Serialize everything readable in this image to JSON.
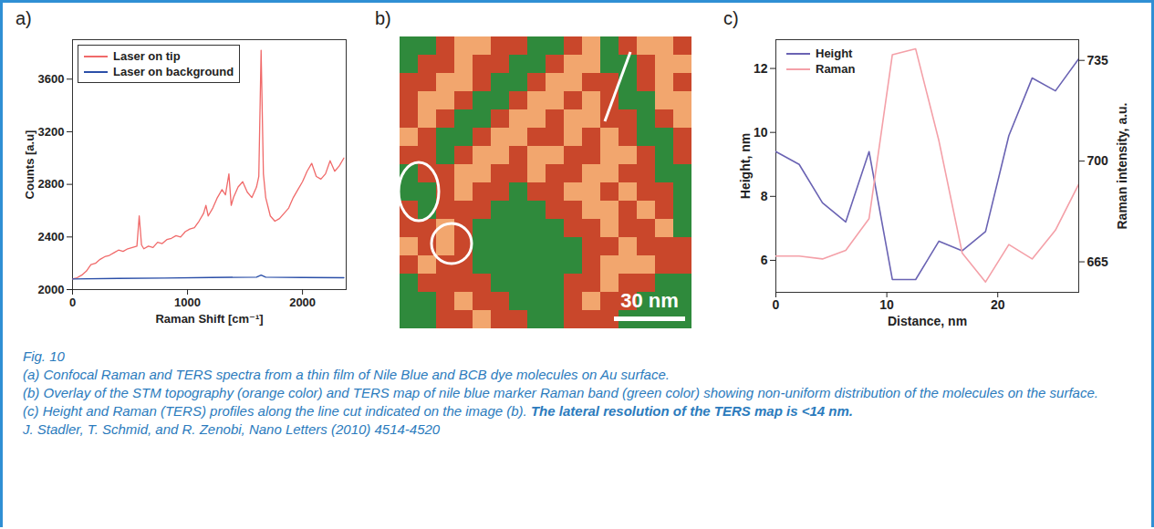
{
  "chart_data": [
    {
      "panel": "a)",
      "type": "line",
      "xlabel": "Raman Shift [cm⁻¹]",
      "ylabel": "Counts [a.u]",
      "xlim": [
        0,
        2380
      ],
      "ylim": [
        2000,
        3900
      ],
      "xticks": [
        0,
        1000,
        2000
      ],
      "yticks": [
        2000,
        2400,
        2800,
        3200,
        3600
      ],
      "legend": "top-left",
      "series": [
        {
          "name": "Laser on tip",
          "color": "#f06a6a",
          "x": [
            0,
            40,
            80,
            120,
            160,
            200,
            240,
            280,
            320,
            360,
            400,
            440,
            480,
            520,
            560,
            580,
            600,
            620,
            660,
            700,
            740,
            780,
            820,
            860,
            900,
            940,
            980,
            1020,
            1060,
            1100,
            1140,
            1160,
            1180,
            1220,
            1260,
            1300,
            1330,
            1360,
            1380,
            1400,
            1440,
            1480,
            1520,
            1560,
            1600,
            1620,
            1640,
            1660,
            1680,
            1720,
            1760,
            1800,
            1840,
            1880,
            1920,
            1960,
            2000,
            2040,
            2080,
            2120,
            2160,
            2200,
            2240,
            2280,
            2320,
            2360
          ],
          "values": [
            2080,
            2090,
            2110,
            2140,
            2190,
            2200,
            2230,
            2250,
            2260,
            2280,
            2300,
            2290,
            2310,
            2320,
            2330,
            2560,
            2340,
            2310,
            2330,
            2320,
            2360,
            2350,
            2380,
            2390,
            2410,
            2400,
            2440,
            2460,
            2470,
            2520,
            2580,
            2640,
            2560,
            2620,
            2700,
            2760,
            2720,
            2880,
            2640,
            2700,
            2780,
            2820,
            2740,
            2700,
            2780,
            2860,
            3820,
            2880,
            2700,
            2560,
            2520,
            2540,
            2580,
            2620,
            2700,
            2760,
            2820,
            2900,
            2960,
            2860,
            2840,
            2880,
            2980,
            2900,
            2940,
            3000
          ]
        },
        {
          "name": "Laser on background",
          "color": "#2b4fa8",
          "x": [
            0,
            400,
            800,
            1200,
            1600,
            1640,
            1680,
            2000,
            2360
          ],
          "values": [
            2080,
            2085,
            2088,
            2092,
            2095,
            2110,
            2095,
            2092,
            2090
          ]
        }
      ]
    },
    {
      "panel": "b)",
      "type": "heatmap",
      "tick_labels": false,
      "scale_bar": "30 nm",
      "colors": [
        "#2f8a3c",
        "#c9472b",
        "#f2a66e"
      ],
      "cells": [
        [
          0,
          0,
          1,
          2,
          2,
          1,
          1,
          0,
          0,
          1,
          2,
          0,
          1,
          2,
          2,
          1
        ],
        [
          0,
          1,
          1,
          2,
          1,
          1,
          0,
          0,
          1,
          2,
          2,
          0,
          0,
          1,
          2,
          2
        ],
        [
          1,
          1,
          2,
          2,
          1,
          0,
          0,
          1,
          2,
          2,
          1,
          1,
          0,
          1,
          2,
          1
        ],
        [
          1,
          2,
          2,
          1,
          0,
          0,
          1,
          2,
          2,
          1,
          2,
          1,
          0,
          0,
          2,
          2
        ],
        [
          1,
          2,
          1,
          0,
          0,
          1,
          2,
          2,
          1,
          2,
          2,
          1,
          1,
          0,
          1,
          2
        ],
        [
          2,
          1,
          0,
          0,
          1,
          2,
          2,
          1,
          1,
          2,
          1,
          2,
          1,
          0,
          0,
          1
        ],
        [
          1,
          1,
          0,
          1,
          2,
          2,
          1,
          2,
          2,
          1,
          1,
          2,
          2,
          1,
          0,
          1
        ],
        [
          0,
          1,
          1,
          2,
          2,
          1,
          1,
          2,
          1,
          1,
          2,
          2,
          1,
          1,
          0,
          0
        ],
        [
          0,
          0,
          1,
          2,
          1,
          1,
          0,
          1,
          1,
          2,
          2,
          1,
          2,
          1,
          1,
          0
        ],
        [
          1,
          0,
          1,
          1,
          1,
          0,
          0,
          0,
          1,
          1,
          2,
          2,
          1,
          2,
          1,
          0
        ],
        [
          1,
          1,
          2,
          1,
          0,
          0,
          0,
          0,
          0,
          1,
          1,
          2,
          1,
          1,
          2,
          0
        ],
        [
          2,
          1,
          2,
          1,
          0,
          0,
          0,
          0,
          0,
          0,
          1,
          1,
          2,
          1,
          1,
          1
        ],
        [
          1,
          2,
          1,
          1,
          0,
          0,
          0,
          0,
          0,
          0,
          1,
          2,
          2,
          2,
          1,
          1
        ],
        [
          0,
          1,
          1,
          1,
          1,
          0,
          0,
          0,
          0,
          1,
          1,
          2,
          1,
          1,
          0,
          0
        ],
        [
          0,
          0,
          1,
          2,
          1,
          1,
          0,
          0,
          0,
          1,
          2,
          1,
          1,
          0,
          0,
          0
        ],
        [
          0,
          0,
          1,
          1,
          2,
          1,
          1,
          0,
          0,
          1,
          1,
          1,
          0,
          0,
          0,
          0
        ]
      ]
    },
    {
      "panel": "c)",
      "type": "line",
      "xlabel": "Distance, nm",
      "ylabel": "Height, nm",
      "y2label": "Raman intensity, a.u.",
      "x": [
        0,
        2.1,
        4.2,
        6.3,
        8.4,
        10.5,
        12.6,
        14.7,
        16.8,
        18.9,
        21,
        23.1,
        25.2,
        27.3
      ],
      "xlim": [
        0,
        27.3
      ],
      "xticks": [
        0,
        10,
        20
      ],
      "ylim": [
        5,
        12.9
      ],
      "yticks": [
        6,
        8,
        10,
        12
      ],
      "y2lim": [
        654.4,
        742.2
      ],
      "y2ticks": [
        665,
        700,
        735
      ],
      "legend": "top-left",
      "series": [
        {
          "name": "Height",
          "color": "#6a63b3",
          "values": [
            9.4,
            9.0,
            7.8,
            7.2,
            9.4,
            5.4,
            5.4,
            6.6,
            6.3,
            6.9,
            9.9,
            11.7,
            11.3,
            12.3
          ]
        },
        {
          "name": "Raman",
          "color": "#f4a0a8",
          "axis": "y2",
          "values": [
            667,
            667,
            666,
            669,
            680,
            737,
            739,
            707,
            668,
            658,
            671,
            666,
            676,
            692
          ]
        }
      ]
    }
  ],
  "caption": {
    "label": "Fig. 10",
    "a": "(a) Confocal Raman and TERS spectra from a thin film of Nile Blue and BCB dye molecules on Au surface.",
    "b": "(b) Overlay of the STM topography (orange color) and TERS map of nile blue marker Raman band (green color) showing non-uniform distribution of the molecules on the surface.",
    "c": "(c) Height and Raman (TERS) profiles along the line cut indicated on the image (b).",
    "bold": "The lateral resolution of the TERS map is <14 nm.",
    "source": "J. Stadler, T. Schmid, and R. Zenobi, Nano Letters (2010) 4514-4520"
  }
}
